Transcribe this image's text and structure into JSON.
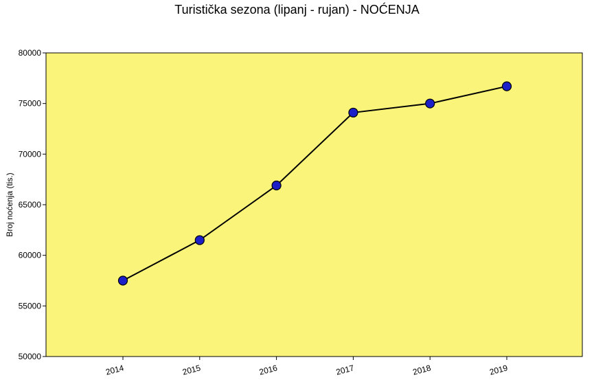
{
  "chart_data": {
    "type": "line",
    "title": "Turistička sezona (lipanj - rujan) - NOĆENJA",
    "xlabel": "",
    "ylabel": "Broj noćenja (tis.)",
    "categories": [
      "2014",
      "2015",
      "2016",
      "2017",
      "2018",
      "2019"
    ],
    "series": [
      {
        "values": [
          57500,
          61500,
          66900,
          74100,
          75000,
          76700
        ]
      }
    ],
    "ylim": [
      50000,
      80000
    ],
    "yticks": [
      50000,
      55000,
      60000,
      65000,
      70000,
      75000,
      80000
    ],
    "grid": false,
    "legend": "none",
    "colors": {
      "plot_background": "#FBF47A",
      "line": "#000000",
      "marker_fill": "#1C1FC7",
      "marker_stroke": "#000000"
    }
  }
}
